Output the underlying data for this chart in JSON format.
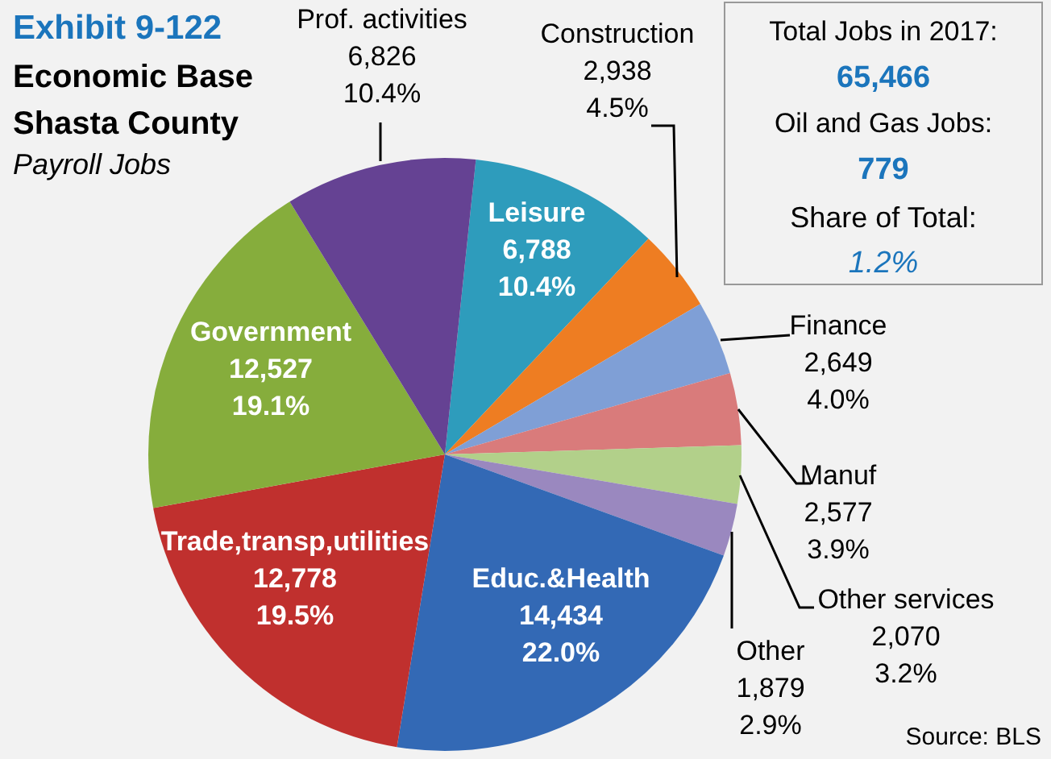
{
  "chart_data": {
    "type": "pie",
    "title": "Exhibit 9-122",
    "subtitle": "Economic Base Shasta County",
    "categories": [
      "Leisure",
      "Construction",
      "Finance",
      "Manuf",
      "Other services",
      "Other",
      "Educ.&Health",
      "Trade,transp,utilities",
      "Government",
      "Prof. activities"
    ],
    "values": [
      6788,
      2938,
      2649,
      2577,
      2070,
      1879,
      14434,
      12778,
      12527,
      6826
    ],
    "colors": [
      "#2e9cbc",
      "#ee7d22",
      "#7f9fd6",
      "#d97b7b",
      "#b2d08a",
      "#9a88bf",
      "#3369b5",
      "#c0302e",
      "#86ad3c",
      "#654293"
    ],
    "value_labels": [
      "6,788\n10.4%",
      "2,938\n4.5%",
      "2,649\n4.0%",
      "2,577\n3.9%",
      "2,070\n3.2%",
      "1,879\n2.9%",
      "14,434\n22.0%",
      "12,778\n19.5%",
      "12,527\n19.1%",
      "6,826\n10.4%"
    ],
    "annotations": [
      "Payroll Jobs",
      "Total Jobs in 2017:",
      "65,466",
      "Oil and Gas Jobs:",
      "779",
      "Share of Total:",
      "1.2%",
      "Source: BLS"
    ]
  }
}
